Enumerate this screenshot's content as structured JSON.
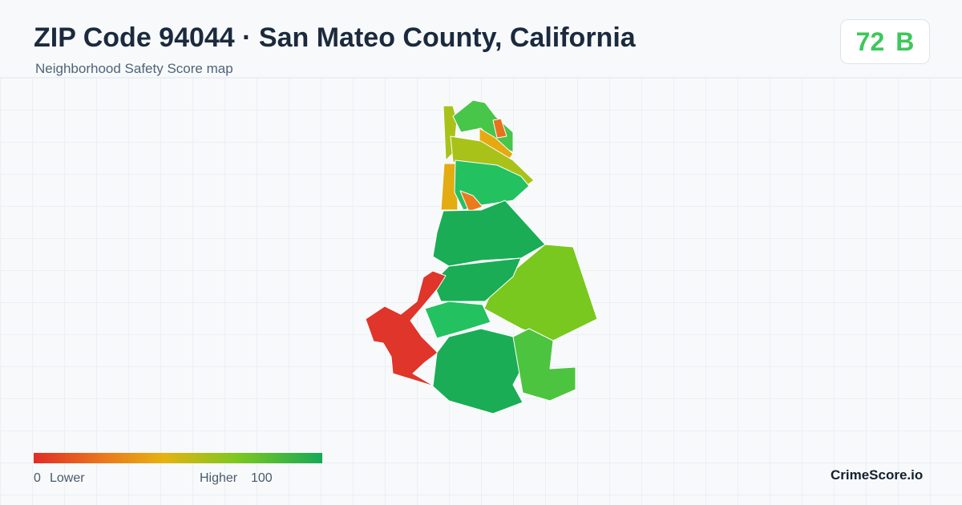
{
  "header": {
    "title": "ZIP Code 94044 · San Mateo County, California",
    "subtitle": "Neighborhood Safety Score map"
  },
  "score": {
    "value": 72,
    "grade": "B"
  },
  "legend": {
    "min": 0,
    "min_label": "Lower",
    "max_label": "Higher",
    "max": 100
  },
  "brand": "CrimeScore.io"
}
